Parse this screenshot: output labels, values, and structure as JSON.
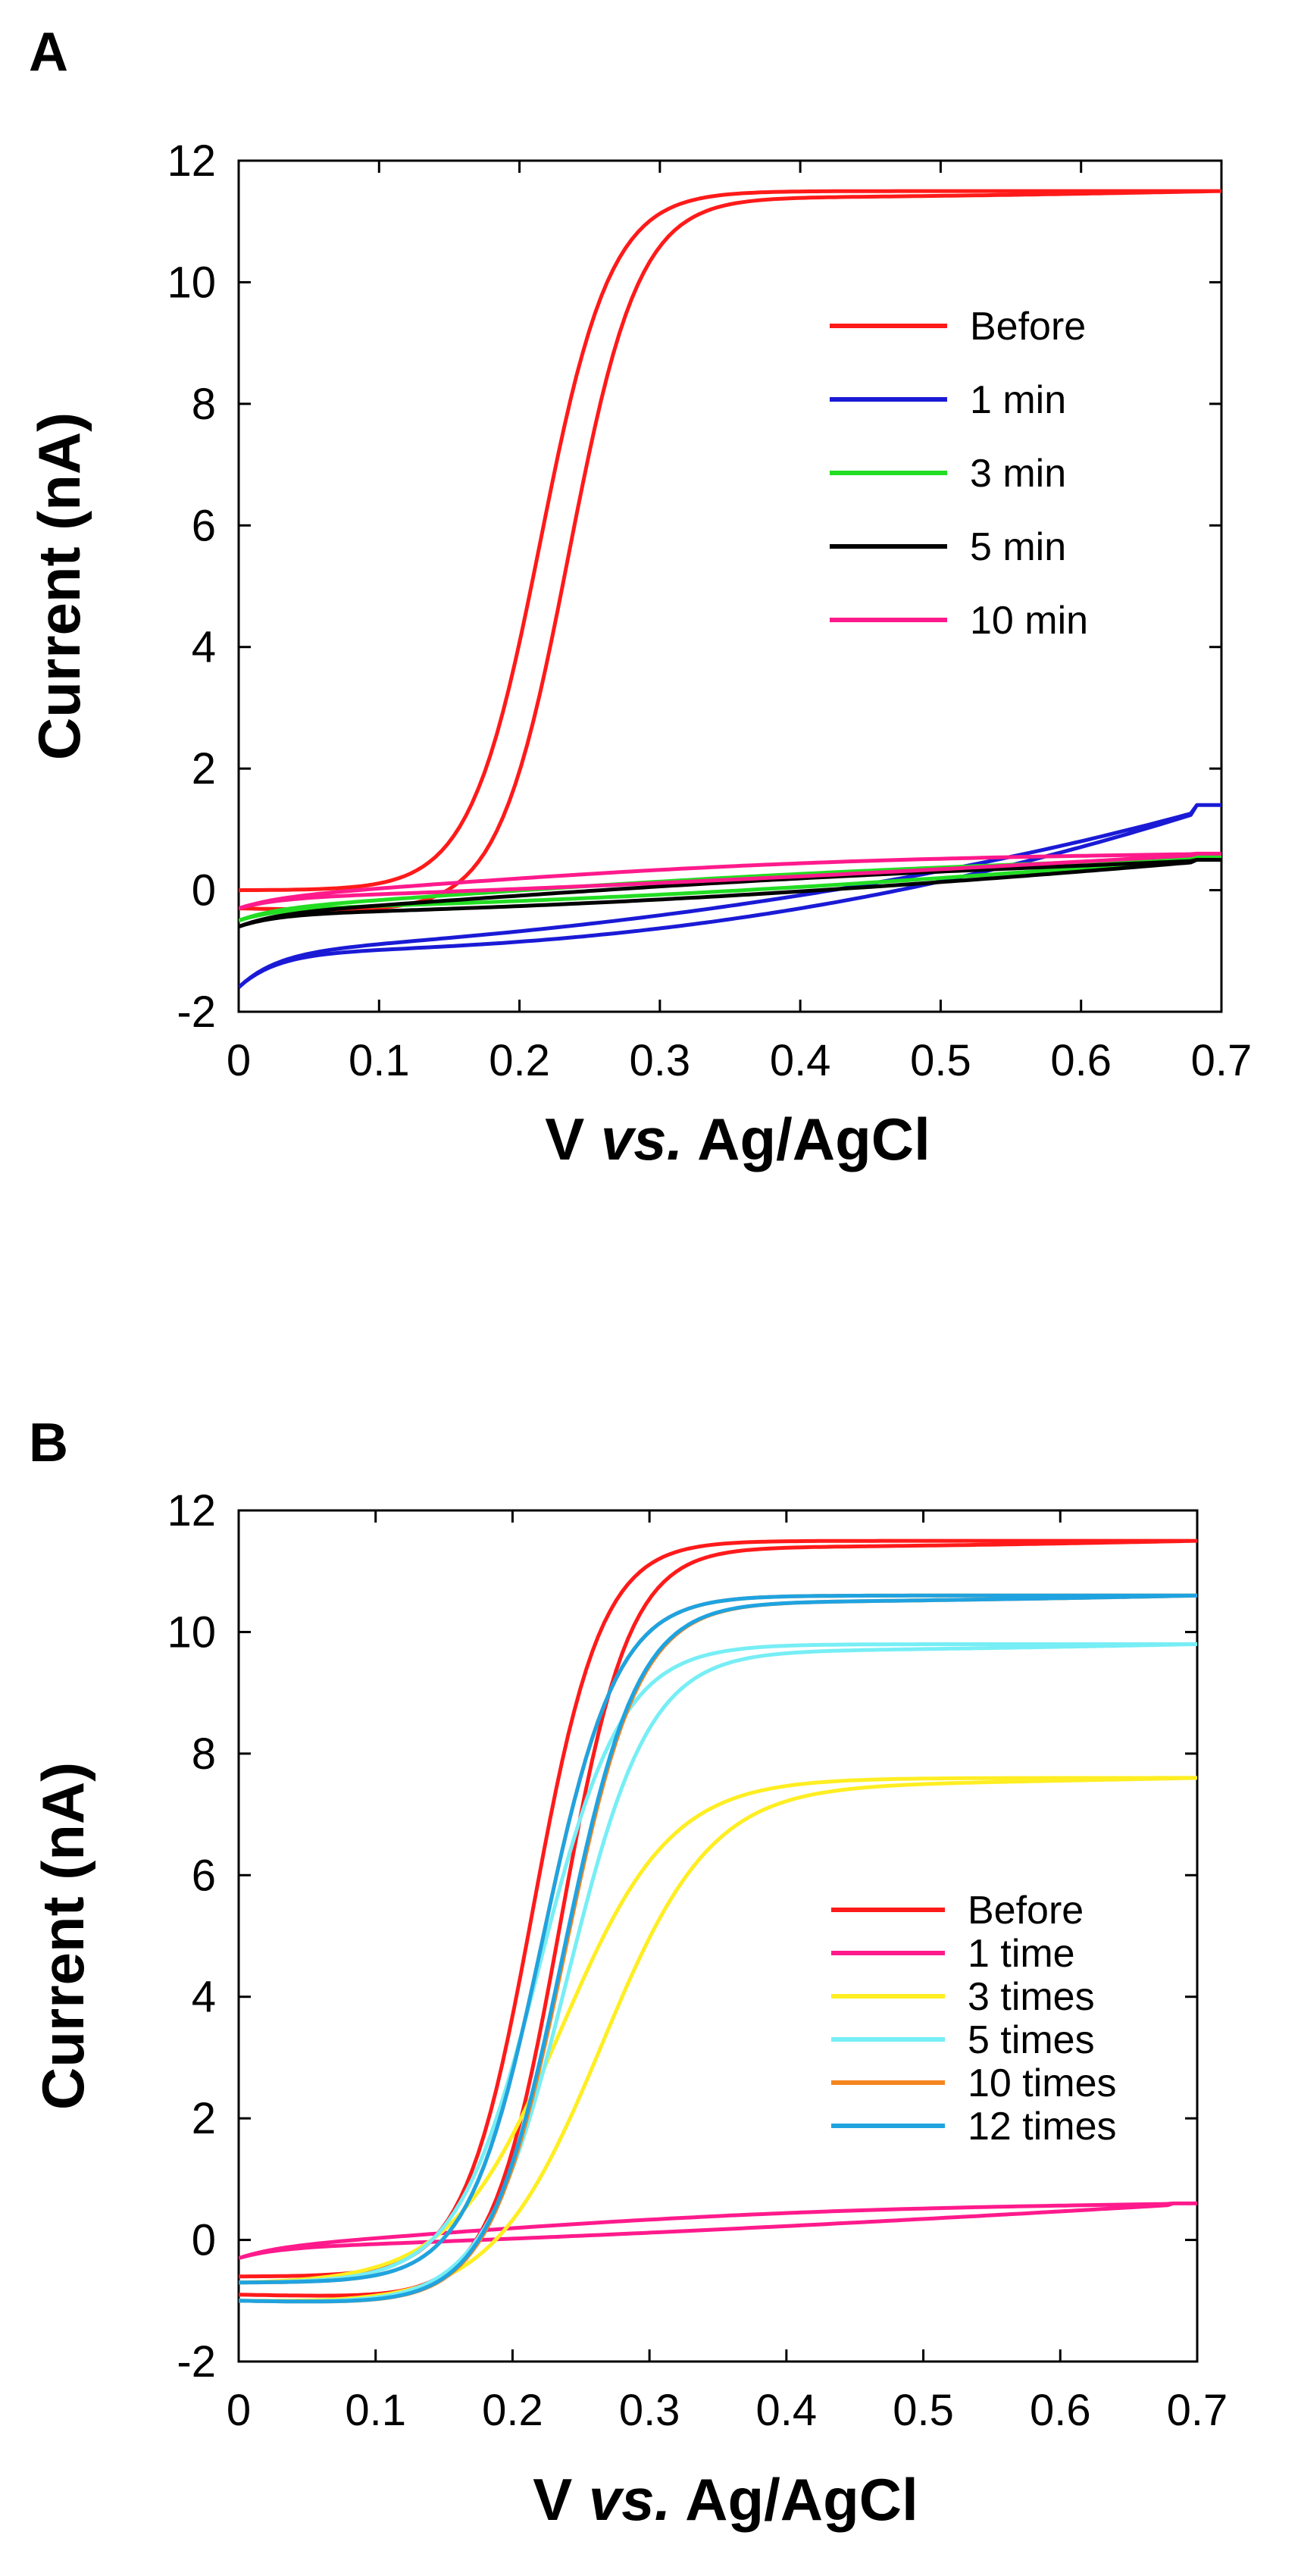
{
  "figure": {
    "panels": [
      "A",
      "B"
    ]
  },
  "chart_data": [
    {
      "panel": "A",
      "type": "line",
      "title": "",
      "xlabel_main": "V",
      "xlabel_italic": "vs.",
      "xlabel_tail": "Ag/AgCl",
      "ylabel": "Current (nA)",
      "xlim": [
        0,
        0.7
      ],
      "ylim": [
        -2,
        12
      ],
      "xticks": [
        "0",
        "0.1",
        "0.2",
        "0.3",
        "0.4",
        "0.5",
        "0.6",
        "0.7"
      ],
      "yticks": [
        "-2",
        "0",
        "2",
        "4",
        "6",
        "8",
        "10",
        "12"
      ],
      "legend_position": "upper-right",
      "series": [
        {
          "name": "Before",
          "color": "#ff1a1a",
          "type": "sigmoid",
          "I0": -0.3,
          "Ilim": 11.5,
          "E_fwd": 0.235,
          "E_rev": 0.215,
          "k": 0.025
        },
        {
          "name": "1 min",
          "color": "#1a1ad6",
          "type": "background",
          "start": -1.6,
          "end": 1.4,
          "curve": 2.2
        },
        {
          "name": "3 min",
          "color": "#22dd22",
          "type": "background",
          "start": -0.5,
          "end": 0.55,
          "curve": 1.6
        },
        {
          "name": "5 min",
          "color": "#000000",
          "type": "background",
          "start": -0.6,
          "end": 0.5,
          "curve": 1.6
        },
        {
          "name": "10 min",
          "color": "#ff1a8c",
          "type": "background",
          "start": -0.3,
          "end": 0.6,
          "curve": 1.3
        }
      ]
    },
    {
      "panel": "B",
      "type": "line",
      "title": "",
      "xlabel_main": "V",
      "xlabel_italic": "vs.",
      "xlabel_tail": "Ag/AgCl",
      "ylabel": "Current (nA)",
      "xlim": [
        0,
        0.7
      ],
      "ylim": [
        -2,
        12
      ],
      "xticks": [
        "0",
        "0.1",
        "0.2",
        "0.3",
        "0.4",
        "0.5",
        "0.6",
        "0.7"
      ],
      "yticks": [
        "-2",
        "0",
        "2",
        "4",
        "6",
        "8",
        "10",
        "12"
      ],
      "legend_position": "lower-right",
      "series": [
        {
          "name": "Before",
          "color": "#ff1a1a",
          "type": "sigmoid",
          "I0": -0.9,
          "Ilim": 11.5,
          "E_fwd": 0.235,
          "E_rev": 0.215,
          "k": 0.025
        },
        {
          "name": "1 time",
          "color": "#ff1a8c",
          "type": "background",
          "start": -0.3,
          "end": 0.6,
          "curve": 1.3
        },
        {
          "name": "3 times",
          "color": "#ffee22",
          "type": "sigmoid",
          "I0": -1.0,
          "Ilim": 7.6,
          "E_fwd": 0.265,
          "E_rev": 0.235,
          "k": 0.04
        },
        {
          "name": "5 times",
          "color": "#77eef5",
          "type": "sigmoid",
          "I0": -1.0,
          "Ilim": 9.8,
          "E_fwd": 0.24,
          "E_rev": 0.22,
          "k": 0.03
        },
        {
          "name": "10 times",
          "color": "#f5851f",
          "type": "sigmoid",
          "I0": -1.0,
          "Ilim": 10.6,
          "E_fwd": 0.238,
          "E_rev": 0.222,
          "k": 0.027
        },
        {
          "name": "12 times",
          "color": "#1fa3e0",
          "type": "sigmoid",
          "I0": -1.0,
          "Ilim": 10.6,
          "E_fwd": 0.237,
          "E_rev": 0.222,
          "k": 0.027
        }
      ]
    }
  ]
}
